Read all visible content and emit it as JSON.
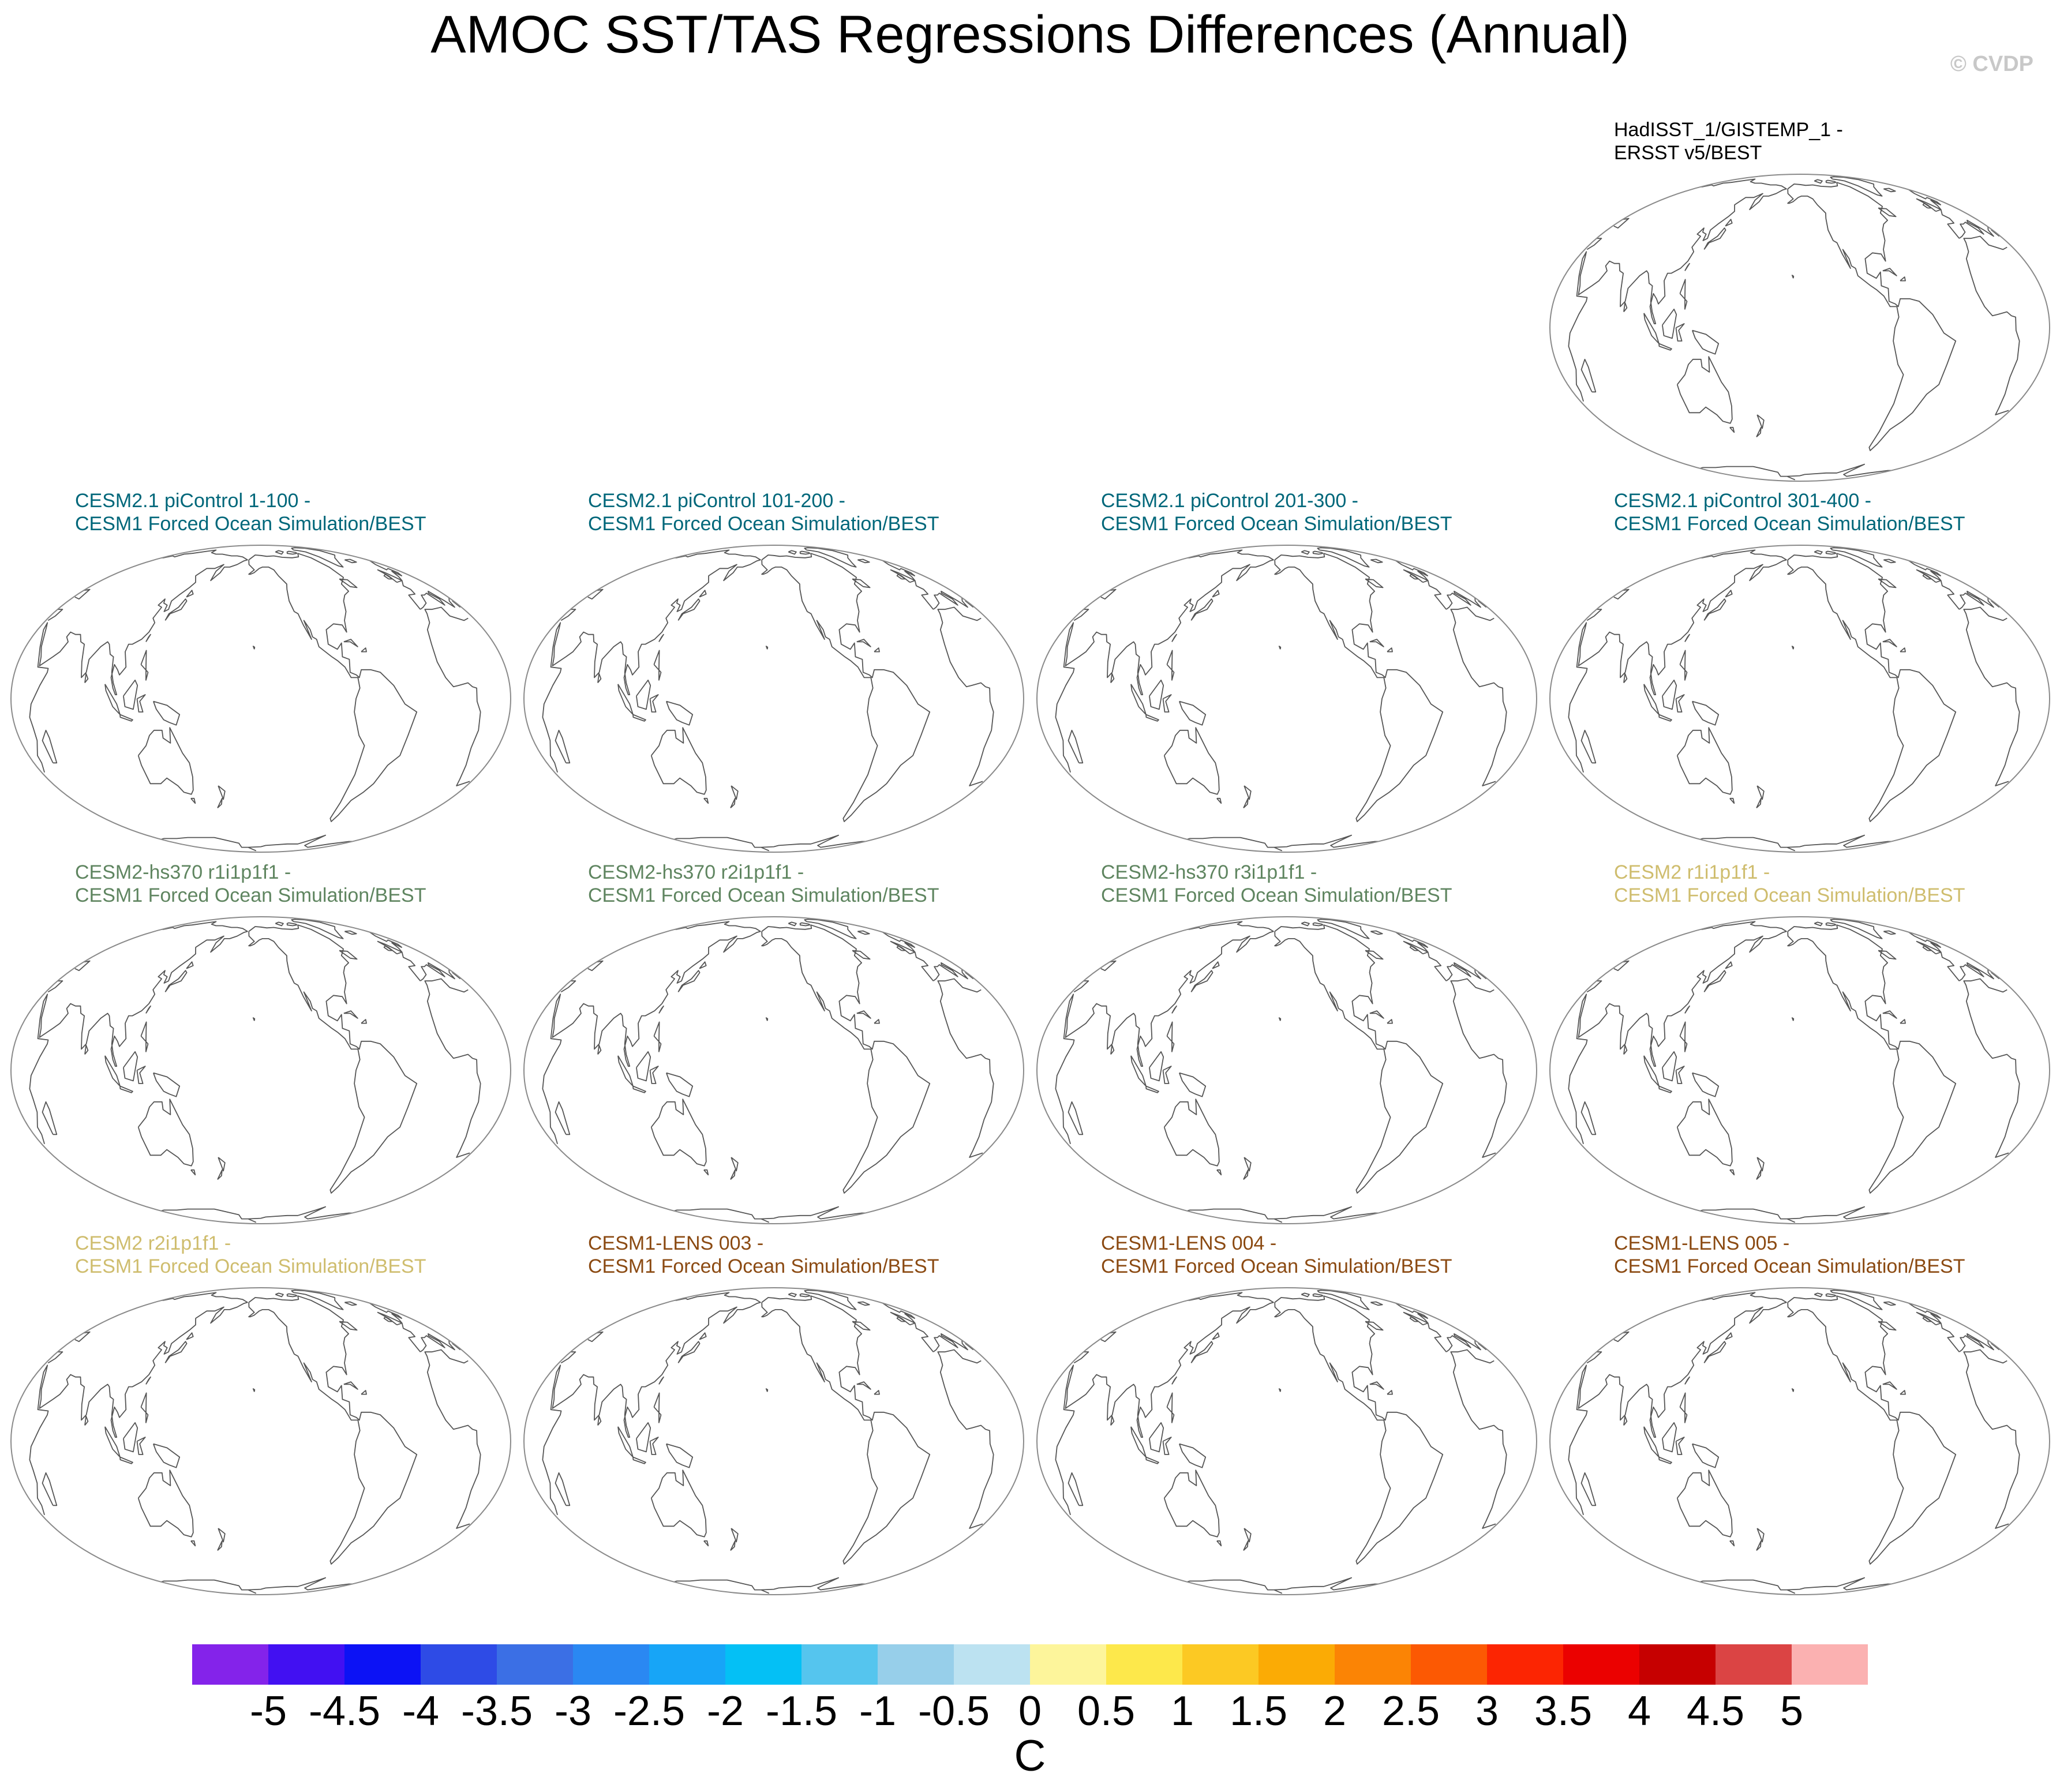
{
  "title": "AMOC SST/TAS Regressions Differences (Annual)",
  "copyright": "© CVDP",
  "chart_data": {
    "type": "map-panels",
    "title": "AMOC SST/TAS Regressions Differences (Annual)",
    "projection": "Robinson, Pacific-centered",
    "panels": [
      {
        "line1": "HadISST_1/GISTEMP_1 -",
        "line2": "ERSST v5/BEST",
        "color": "#000000"
      },
      {
        "line1": "CESM2.1 piControl 1-100 -",
        "line2": "CESM1 Forced Ocean Simulation/BEST",
        "color": "#00677a"
      },
      {
        "line1": "CESM2.1 piControl 101-200 -",
        "line2": "CESM1 Forced Ocean Simulation/BEST",
        "color": "#00677a"
      },
      {
        "line1": "CESM2.1 piControl 201-300 -",
        "line2": "CESM1 Forced Ocean Simulation/BEST",
        "color": "#00677a"
      },
      {
        "line1": "CESM2.1 piControl 301-400 -",
        "line2": "CESM1 Forced Ocean Simulation/BEST",
        "color": "#00677a"
      },
      {
        "line1": "CESM2-hs370 r1i1p1f1 -",
        "line2": "CESM1 Forced Ocean Simulation/BEST",
        "color": "#5f8560"
      },
      {
        "line1": "CESM2-hs370 r2i1p1f1 -",
        "line2": "CESM1 Forced Ocean Simulation/BEST",
        "color": "#5f8560"
      },
      {
        "line1": "CESM2-hs370 r3i1p1f1 -",
        "line2": "CESM1 Forced Ocean Simulation/BEST",
        "color": "#5f8560"
      },
      {
        "line1": "CESM2 r1i1p1f1 -",
        "line2": "CESM1 Forced Ocean Simulation/BEST",
        "color": "#cfbd6e"
      },
      {
        "line1": "CESM2 r2i1p1f1 -",
        "line2": "CESM1 Forced Ocean Simulation/BEST",
        "color": "#cfbd6e"
      },
      {
        "line1": "CESM1-LENS 003 -",
        "line2": "CESM1 Forced Ocean Simulation/BEST",
        "color": "#8b4a12"
      },
      {
        "line1": "CESM1-LENS 004 -",
        "line2": "CESM1 Forced Ocean Simulation/BEST",
        "color": "#8b4a12"
      },
      {
        "line1": "CESM1-LENS 005 -",
        "line2": "CESM1 Forced Ocean Simulation/BEST",
        "color": "#8b4a12"
      }
    ],
    "colorbar": {
      "units": "C",
      "ticks": [
        "-5",
        "-4.5",
        "-4",
        "-3.5",
        "-3",
        "-2.5",
        "-2",
        "-1.5",
        "-1",
        "-0.5",
        "0",
        "0.5",
        "1",
        "1.5",
        "2",
        "2.5",
        "3",
        "3.5",
        "4",
        "4.5",
        "5"
      ],
      "colors": [
        "#8423ea",
        "#4210f2",
        "#0c12f5",
        "#2e4be6",
        "#3b6fe5",
        "#2a88f2",
        "#17a5f7",
        "#04c0f5",
        "#55c5ee",
        "#97cfea",
        "#bce2f1",
        "#fdf59b",
        "#fde84b",
        "#fcc923",
        "#fbab05",
        "#fb8405",
        "#fc5903",
        "#fc2502",
        "#eb0100",
        "#c60000",
        "#db4444",
        "#fbb1b1"
      ]
    }
  }
}
